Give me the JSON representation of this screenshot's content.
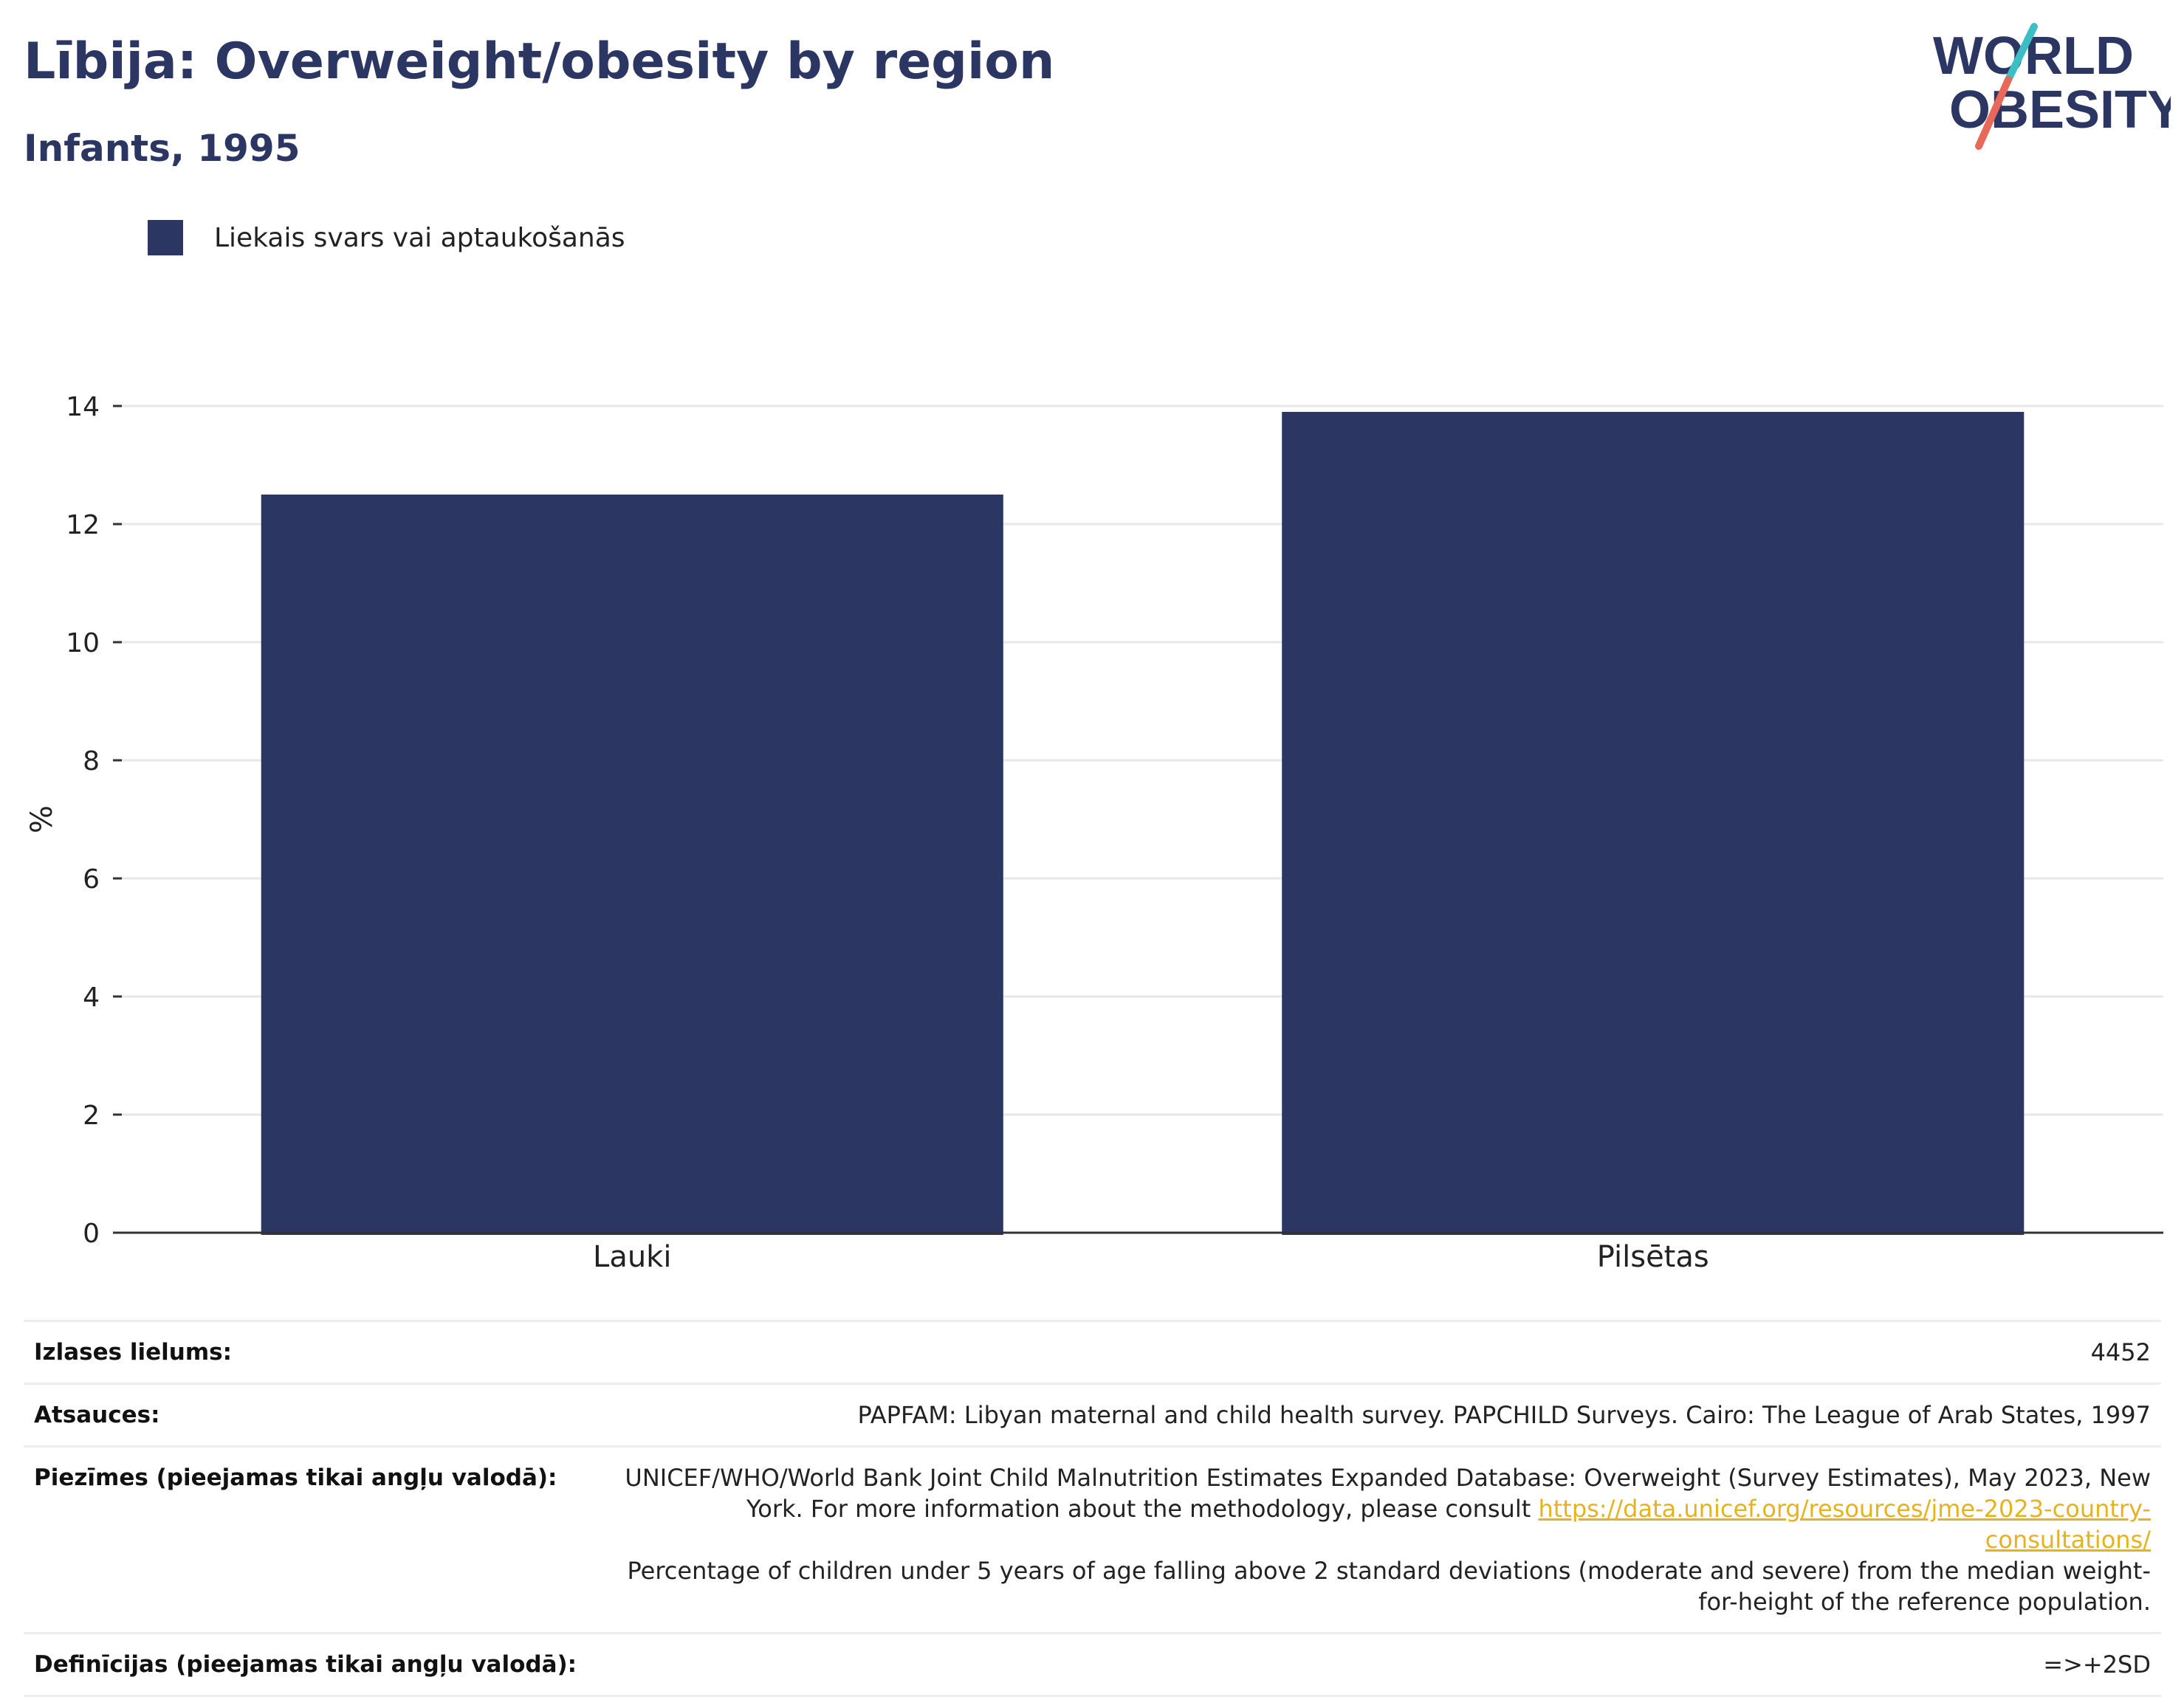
{
  "header": {
    "title": "Lībija: Overweight/obesity by region",
    "subtitle": "Infants, 1995"
  },
  "logo": {
    "line1": "WORLD",
    "line2": "OBESITY",
    "accent_teal": "#3bbfc4",
    "accent_coral": "#e8685a"
  },
  "legend": {
    "label": "Liekais svars vai aptaukošanās",
    "color": "#2b3663"
  },
  "chart_data": {
    "type": "bar",
    "categories": [
      "Lauki",
      "Pilsētas"
    ],
    "series": [
      {
        "name": "Liekais svars vai aptaukošanās",
        "values": [
          12.5,
          13.9
        ],
        "color": "#2b3663"
      }
    ],
    "ylabel": "%",
    "xlabel": "",
    "ylim": [
      0,
      14
    ],
    "yticks": [
      0,
      2,
      4,
      6,
      8,
      10,
      12,
      14
    ],
    "grid": true
  },
  "meta": {
    "sample_label": "Izlases lielums:",
    "sample_value": "4452",
    "sources_label": "Atsauces:",
    "sources_value": "PAPFAM: Libyan maternal and child health survey. PAPCHILD Surveys. Cairo: The League of Arab States, 1997",
    "notes_label": "Piezīmes (pieejamas tikai angļu valodā):",
    "notes_text1": "UNICEF/WHO/World Bank Joint Child Malnutrition Estimates Expanded Database: Overweight (Survey Estimates), May 2023, New York. For more information about the methodology, please consult",
    "notes_link": "https://data.unicef.org/resources/jme-2023-country-consultations/",
    "notes_text2": "Percentage of children under 5 years of age falling above 2 standard deviations (moderate and severe) from the median weight-for-height of the reference population.",
    "definitions_label": "Definīcijas (pieejamas tikai angļu valodā):",
    "definitions_value": "=>+2SD"
  }
}
